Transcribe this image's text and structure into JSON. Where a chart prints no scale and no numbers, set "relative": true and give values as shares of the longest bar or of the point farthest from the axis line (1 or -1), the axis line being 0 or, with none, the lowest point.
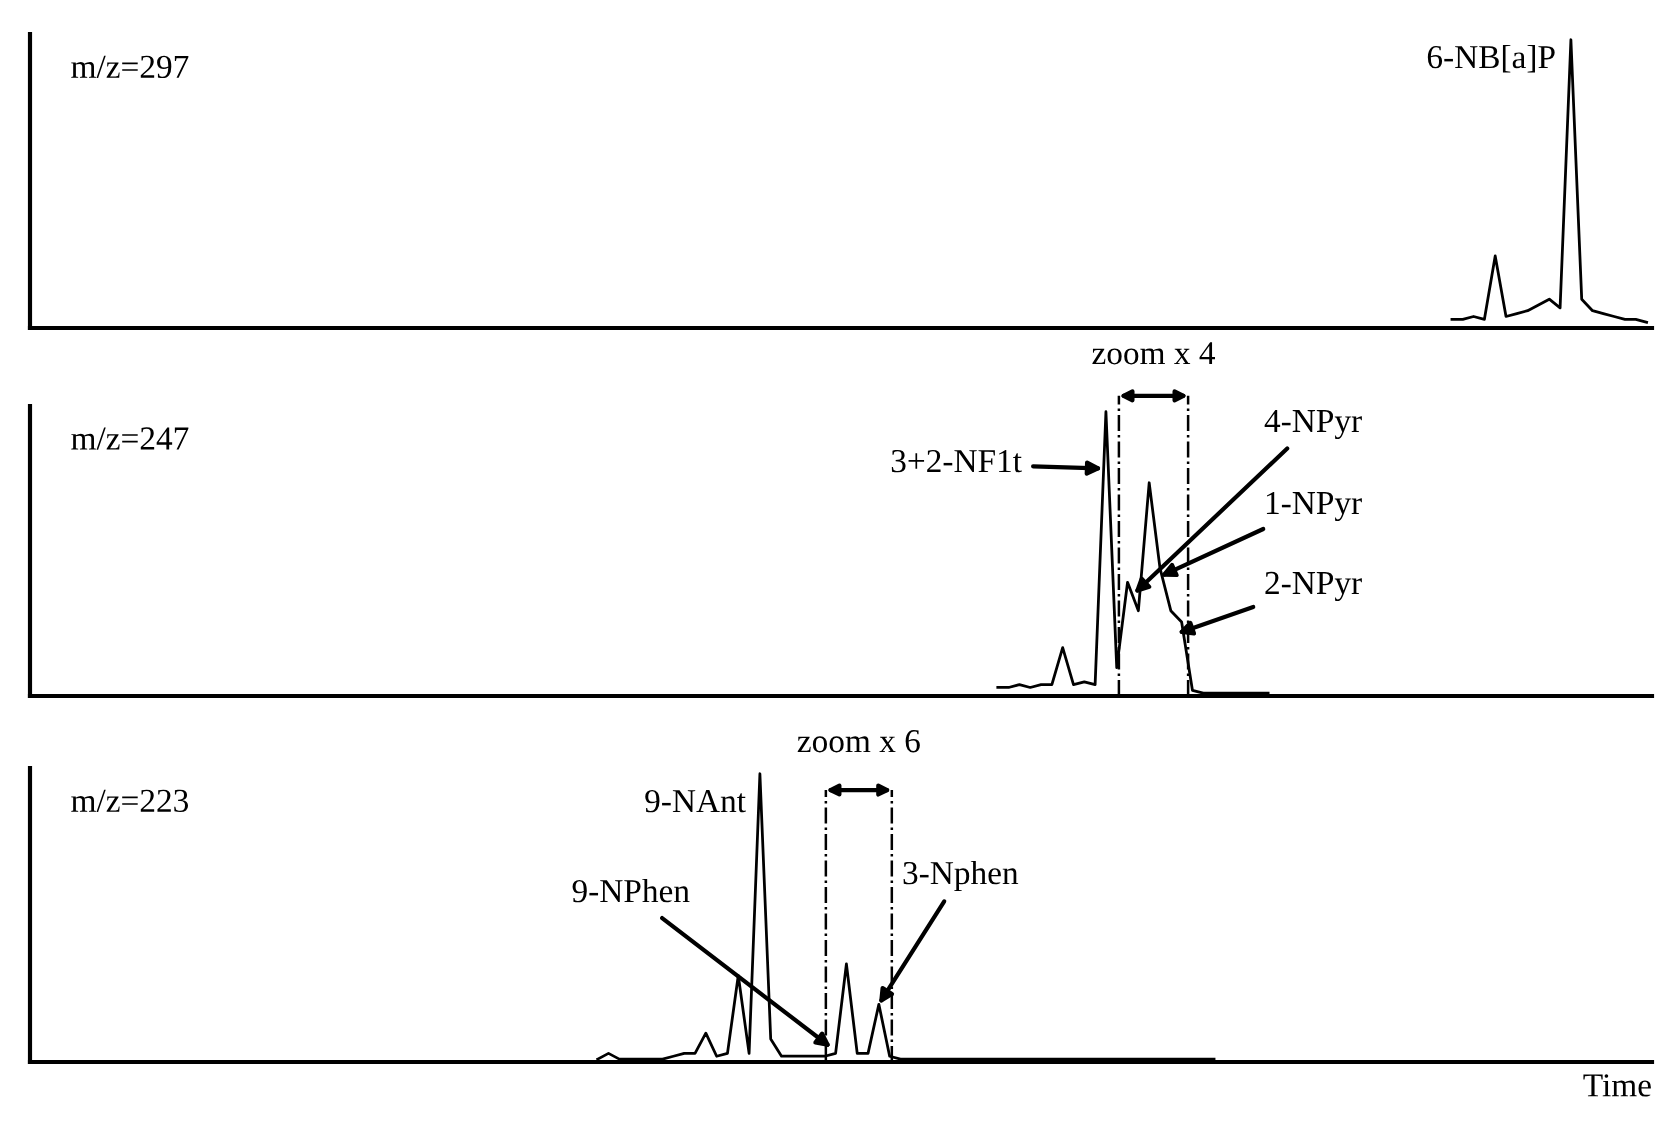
{
  "chart_data": [
    {
      "type": "line",
      "title": "m/z=297",
      "relative": true,
      "categories": [
        null,
        null,
        null,
        null,
        null,
        null,
        null,
        null,
        null,
        null,
        null,
        null,
        null,
        null,
        null,
        null,
        null,
        null,
        null,
        null,
        null,
        null,
        null,
        null,
        null,
        null,
        null,
        null,
        null,
        null,
        null,
        null,
        null,
        null,
        null,
        null,
        null,
        null,
        null,
        null,
        null,
        null,
        null,
        null,
        null,
        null,
        null,
        null,
        null,
        null,
        null,
        null,
        null,
        null,
        null,
        null,
        null,
        null,
        null,
        null,
        null,
        null,
        null,
        null,
        null,
        null,
        null,
        null,
        null,
        null,
        null,
        null,
        null,
        null,
        null,
        null,
        null,
        null,
        null,
        null,
        null,
        null,
        null,
        null,
        null,
        null,
        null,
        null,
        null,
        null,
        null,
        null,
        null,
        null,
        null,
        null,
        null,
        null,
        null,
        null,
        null,
        null,
        null,
        null,
        null,
        null,
        null,
        null,
        null,
        null,
        null,
        null,
        null,
        null,
        null,
        null,
        null,
        null,
        null,
        null,
        null,
        null,
        null,
        null,
        null,
        null,
        null,
        null,
        null,
        null,
        null,
        null,
        null,
        null,
        null,
        null,
        null,
        null,
        null,
        null,
        null,
        null,
        null,
        null,
        null,
        null,
        null,
        null,
        null,
        null
      ],
      "series": [
        {
          "color": "#000000",
          "values": [
            null,
            null,
            null,
            null,
            null,
            null,
            null,
            null,
            null,
            null,
            null,
            null,
            null,
            null,
            null,
            null,
            null,
            null,
            null,
            null,
            null,
            null,
            null,
            null,
            null,
            null,
            null,
            null,
            null,
            null,
            null,
            null,
            null,
            null,
            null,
            null,
            null,
            null,
            null,
            null,
            null,
            null,
            null,
            null,
            null,
            null,
            null,
            null,
            null,
            null,
            null,
            null,
            null,
            null,
            null,
            null,
            null,
            null,
            null,
            null,
            null,
            null,
            null,
            null,
            null,
            null,
            null,
            null,
            null,
            null,
            null,
            null,
            null,
            null,
            null,
            null,
            null,
            null,
            null,
            null,
            null,
            null,
            null,
            null,
            null,
            null,
            null,
            null,
            null,
            null,
            null,
            null,
            null,
            null,
            null,
            null,
            null,
            null,
            null,
            null,
            null,
            null,
            null,
            null,
            null,
            null,
            null,
            null,
            null,
            null,
            null,
            null,
            null,
            null,
            null,
            null,
            null,
            null,
            null,
            null,
            null,
            null,
            null,
            null,
            null,
            null,
            null,
            null,
            null,
            null,
            null,
            0.03,
            0.03,
            0.04,
            0.03,
            0.25,
            0.04,
            0.05,
            0.06,
            0.08,
            0.1,
            0.07,
            1.0,
            0.1,
            0.06,
            0.05,
            0.04,
            0.03,
            0.03,
            0.02
          ]
        }
      ],
      "annotations": [
        "6-NB[a]P"
      ]
    },
    {
      "type": "line",
      "title": "m/z=247",
      "relative": true,
      "categories": [
        null,
        null,
        null,
        null,
        null,
        null,
        null,
        null,
        null,
        null,
        null,
        null,
        null,
        null,
        null,
        null,
        null,
        null,
        null,
        null,
        null,
        null,
        null,
        null,
        null,
        null,
        null,
        null,
        null,
        null,
        null,
        null,
        null,
        null,
        null,
        null,
        null,
        null,
        null,
        null,
        null,
        null,
        null,
        null,
        null,
        null,
        null,
        null,
        null,
        null,
        null,
        null,
        null,
        null,
        null,
        null,
        null,
        null,
        null,
        null,
        null,
        null,
        null,
        null,
        null,
        null,
        null,
        null,
        null,
        null,
        null,
        null,
        null,
        null,
        null,
        null,
        null,
        null,
        null,
        null,
        null,
        null,
        null,
        null,
        null,
        null,
        null,
        null,
        null,
        null,
        null,
        null,
        null,
        null,
        null,
        null,
        null,
        null,
        null,
        null,
        null,
        null,
        null,
        null,
        null,
        null,
        null,
        null,
        null,
        null,
        null,
        null,
        null,
        null,
        null,
        null,
        null,
        null,
        null,
        null,
        null,
        null,
        null,
        null,
        null,
        null,
        null,
        null,
        null,
        null,
        null,
        null,
        null,
        null,
        null,
        null,
        null,
        null,
        null,
        null,
        null,
        null,
        null,
        null,
        null,
        null,
        null,
        null,
        null,
        null
      ],
      "series": [
        {
          "color": "#000000",
          "values": [
            null,
            null,
            null,
            null,
            null,
            null,
            null,
            null,
            null,
            null,
            null,
            null,
            null,
            null,
            null,
            null,
            null,
            null,
            null,
            null,
            null,
            null,
            null,
            null,
            null,
            null,
            null,
            null,
            null,
            null,
            null,
            null,
            null,
            null,
            null,
            null,
            null,
            null,
            null,
            null,
            null,
            null,
            null,
            null,
            null,
            null,
            null,
            null,
            null,
            null,
            null,
            null,
            null,
            null,
            null,
            null,
            null,
            null,
            null,
            null,
            null,
            null,
            null,
            null,
            null,
            null,
            null,
            null,
            null,
            null,
            null,
            null,
            null,
            null,
            null,
            null,
            null,
            null,
            null,
            null,
            null,
            null,
            null,
            null,
            null,
            null,
            null,
            null,
            null,
            0.03,
            0.03,
            0.04,
            0.03,
            0.04,
            0.04,
            0.17,
            0.04,
            0.05,
            0.04,
            1.0,
            0.1,
            0.4,
            0.3,
            0.75,
            0.45,
            0.3,
            0.26,
            0.02,
            0.01,
            0.01,
            0.01,
            0.01,
            0.01,
            0.01,
            0.01,
            null,
            null,
            null,
            null,
            null,
            null,
            null,
            null,
            null,
            null,
            null,
            null,
            null,
            null,
            null,
            null,
            null,
            null,
            null,
            null,
            null,
            null,
            null,
            null,
            null,
            null,
            null,
            null,
            null,
            null,
            null,
            null,
            null,
            null,
            null
          ]
        }
      ],
      "annotations": [
        "3+2-NF1t",
        "4-NPyr",
        "1-NPyr",
        "2-NPyr",
        "zoom x 4"
      ]
    },
    {
      "type": "line",
      "title": "m/z=223",
      "relative": true,
      "xlabel": "Time",
      "categories": [
        null,
        null,
        null,
        null,
        null,
        null,
        null,
        null,
        null,
        null,
        null,
        null,
        null,
        null,
        null,
        null,
        null,
        null,
        null,
        null,
        null,
        null,
        null,
        null,
        null,
        null,
        null,
        null,
        null,
        null,
        null,
        null,
        null,
        null,
        null,
        null,
        null,
        null,
        null,
        null,
        null,
        null,
        null,
        null,
        null,
        null,
        null,
        null,
        null,
        null,
        null,
        null,
        null,
        null,
        null,
        null,
        null,
        null,
        null,
        null,
        null,
        null,
        null,
        null,
        null,
        null,
        null,
        null,
        null,
        null,
        null,
        null,
        null,
        null,
        null,
        null,
        null,
        null,
        null,
        null,
        null,
        null,
        null,
        null,
        null,
        null,
        null,
        null,
        null,
        null,
        null,
        null,
        null,
        null,
        null,
        null,
        null,
        null,
        null,
        null,
        null,
        null,
        null,
        null,
        null,
        null,
        null,
        null,
        null,
        null,
        null,
        null,
        null,
        null,
        null,
        null,
        null,
        null,
        null,
        null,
        null,
        null,
        null,
        null,
        null,
        null,
        null,
        null,
        null,
        null,
        null,
        null,
        null,
        null,
        null,
        null,
        null,
        null,
        null,
        null,
        null,
        null,
        null,
        null,
        null,
        null,
        null,
        null,
        null,
        null
      ],
      "series": [
        {
          "color": "#000000",
          "values": [
            null,
            null,
            null,
            null,
            null,
            null,
            null,
            null,
            null,
            null,
            null,
            null,
            null,
            null,
            null,
            null,
            null,
            null,
            null,
            null,
            null,
            null,
            null,
            null,
            null,
            null,
            null,
            null,
            null,
            null,
            null,
            null,
            null,
            null,
            null,
            null,
            null,
            null,
            null,
            null,
            null,
            null,
            null,
            null,
            null,
            null,
            null,
            null,
            null,
            null,
            null,
            null,
            0.01,
            0.03,
            0.01,
            0.01,
            0.01,
            0.01,
            0.01,
            0.02,
            0.03,
            0.03,
            0.1,
            0.02,
            0.03,
            0.3,
            0.03,
            1.0,
            0.08,
            0.02,
            0.02,
            0.02,
            0.02,
            0.02,
            0.03,
            0.34,
            0.03,
            0.03,
            0.2,
            0.02,
            0.01,
            0.01,
            0.01,
            0.01,
            0.01,
            0.01,
            0.01,
            0.01,
            0.01,
            0.01,
            0.01,
            0.01,
            0.01,
            0.01,
            0.01,
            0.01,
            0.01,
            0.01,
            0.01,
            0.01,
            0.01,
            0.01,
            0.01,
            0.01,
            0.01,
            0.01,
            0.01,
            0.01,
            0.01,
            0.01,
            null,
            null,
            null,
            null,
            null,
            null,
            null,
            null,
            null,
            null,
            null,
            null,
            null,
            null,
            null,
            null,
            null,
            null,
            null,
            null,
            null,
            null,
            null,
            null,
            null,
            null,
            null,
            null,
            null,
            null,
            null,
            null,
            null,
            null,
            null,
            null,
            null,
            null,
            null,
            null
          ]
        }
      ],
      "annotations": [
        "9-NAnt",
        "9-NPhen",
        "3-Nphen",
        "zoom x 6"
      ]
    }
  ]
}
